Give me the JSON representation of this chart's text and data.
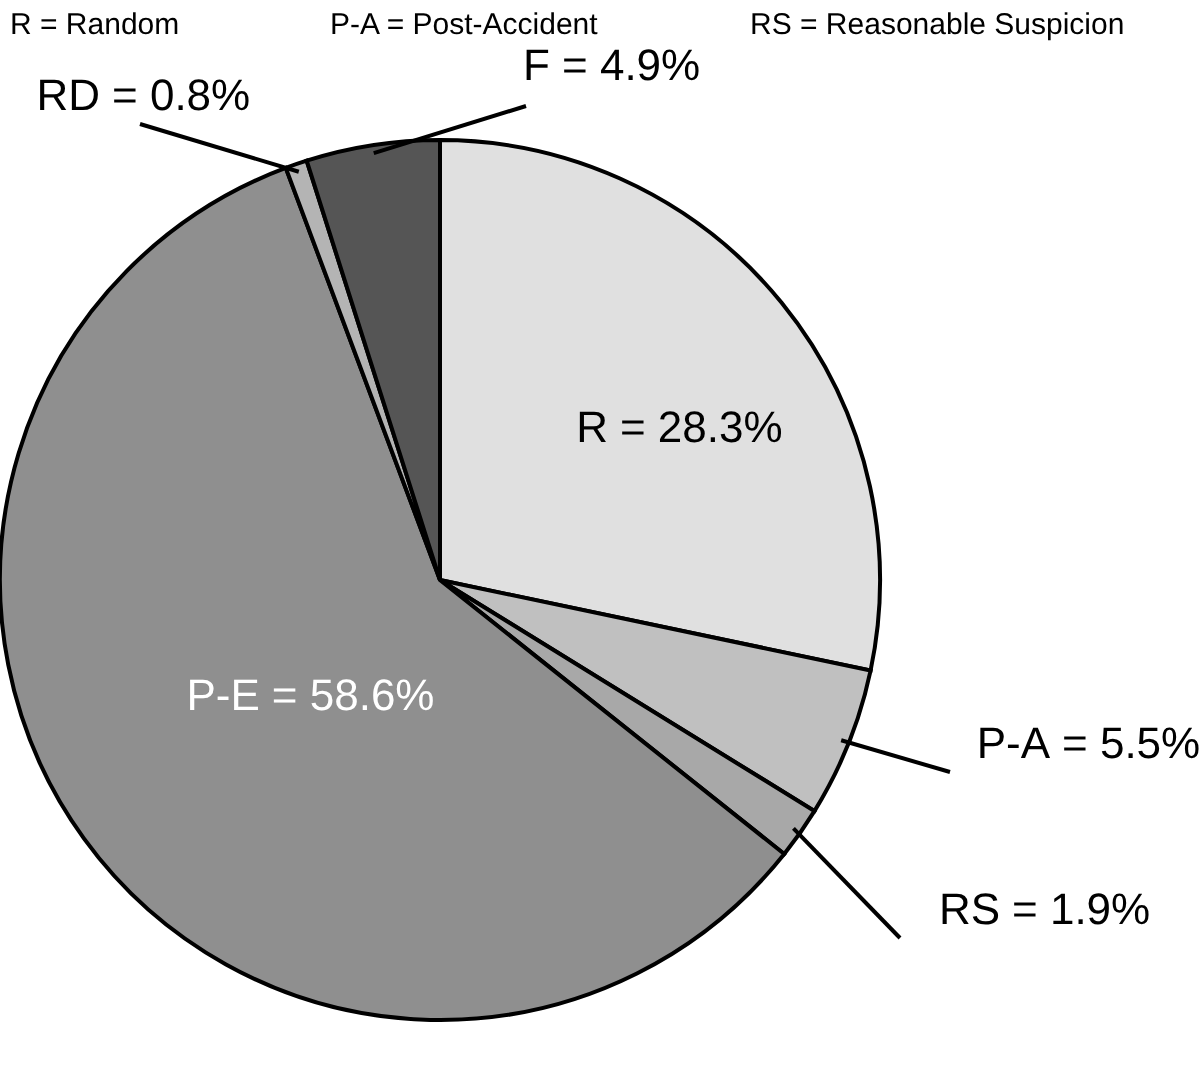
{
  "chart_data": {
    "type": "pie",
    "categories": [
      "R",
      "P-A",
      "RS",
      "P-E",
      "RD",
      "F"
    ],
    "values": [
      28.3,
      5.5,
      1.9,
      58.6,
      0.8,
      4.9
    ],
    "colors": [
      "#e0e0e0",
      "#c0c0c0",
      "#a8a8a8",
      "#8f8f8f",
      "#b4b4b4",
      "#555555"
    ],
    "value_labels": [
      "= 28.3%",
      "= 5.5%",
      "= 1.9%",
      "= 58.6%",
      "= 0.8%",
      "= 4.9%"
    ],
    "annotations": [
      "R = Random",
      "P-A = Post-Accident",
      "RS = Reasonable Suspicion"
    ]
  }
}
